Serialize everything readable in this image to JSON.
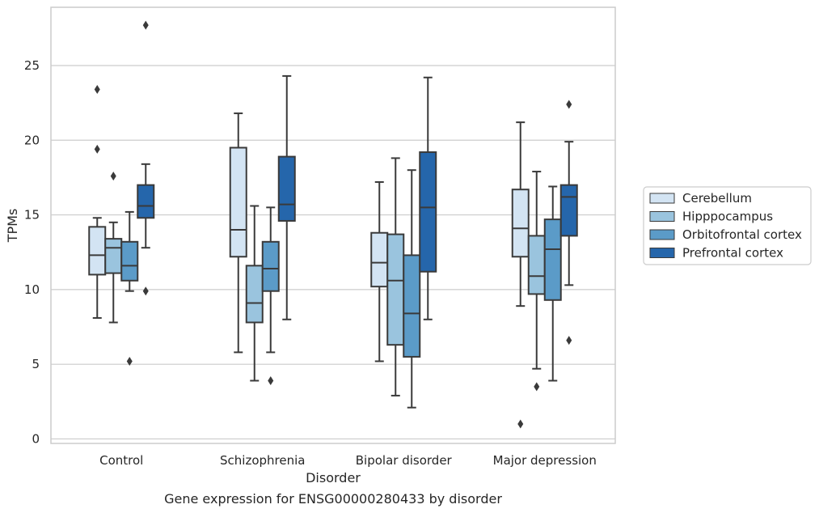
{
  "chart_data": {
    "type": "box",
    "title": "",
    "caption": "Gene expression for ENSG00000280433 by disorder",
    "xlabel": "Disorder",
    "ylabel": "TPMs",
    "ylim": [
      -0.3,
      28.9
    ],
    "yticks": [
      0,
      5,
      10,
      15,
      20,
      25
    ],
    "grid": "horizontal",
    "legend_position": "right",
    "categories": [
      "Control",
      "Schizophrenia",
      "Bipolar disorder",
      "Major depression"
    ],
    "series": [
      {
        "name": "Cerebellum",
        "color": "#d3e4f3",
        "boxes": [
          {
            "whislo": 8.1,
            "q1": 11.0,
            "med": 12.3,
            "q3": 14.2,
            "whishi": 14.8,
            "fliers": [
              23.4,
              19.4
            ]
          },
          {
            "whislo": 5.8,
            "q1": 12.2,
            "med": 14.0,
            "q3": 19.5,
            "whishi": 21.8,
            "fliers": []
          },
          {
            "whislo": 5.2,
            "q1": 10.2,
            "med": 11.8,
            "q3": 13.8,
            "whishi": 17.2,
            "fliers": []
          },
          {
            "whislo": 8.9,
            "q1": 12.2,
            "med": 14.1,
            "q3": 16.7,
            "whishi": 21.2,
            "fliers": [
              1.0
            ]
          }
        ]
      },
      {
        "name": "Hipppocampus",
        "color": "#9ac4de",
        "boxes": [
          {
            "whislo": 7.8,
            "q1": 11.1,
            "med": 12.8,
            "q3": 13.4,
            "whishi": 14.5,
            "fliers": [
              17.6
            ]
          },
          {
            "whislo": 3.9,
            "q1": 7.8,
            "med": 9.1,
            "q3": 11.6,
            "whishi": 15.6,
            "fliers": []
          },
          {
            "whislo": 2.9,
            "q1": 6.3,
            "med": 10.6,
            "q3": 13.7,
            "whishi": 18.8,
            "fliers": []
          },
          {
            "whislo": 4.7,
            "q1": 9.7,
            "med": 10.9,
            "q3": 13.6,
            "whishi": 17.9,
            "fliers": [
              3.5
            ]
          }
        ]
      },
      {
        "name": "Orbitofrontal cortex",
        "color": "#5b9bc8",
        "boxes": [
          {
            "whislo": 9.9,
            "q1": 10.6,
            "med": 11.6,
            "q3": 13.2,
            "whishi": 15.2,
            "fliers": [
              5.2
            ]
          },
          {
            "whislo": 5.8,
            "q1": 9.9,
            "med": 11.4,
            "q3": 13.2,
            "whishi": 15.5,
            "fliers": [
              3.9
            ]
          },
          {
            "whislo": 2.1,
            "q1": 5.5,
            "med": 8.4,
            "q3": 12.3,
            "whishi": 18.0,
            "fliers": []
          },
          {
            "whislo": 3.9,
            "q1": 9.3,
            "med": 12.7,
            "q3": 14.7,
            "whishi": 16.9,
            "fliers": []
          }
        ]
      },
      {
        "name": "Prefrontal cortex",
        "color": "#2566ab",
        "boxes": [
          {
            "whislo": 12.8,
            "q1": 14.8,
            "med": 15.6,
            "q3": 17.0,
            "whishi": 18.4,
            "fliers": [
              27.7,
              9.9
            ]
          },
          {
            "whislo": 8.0,
            "q1": 14.6,
            "med": 15.7,
            "q3": 18.9,
            "whishi": 24.3,
            "fliers": []
          },
          {
            "whislo": 8.0,
            "q1": 11.2,
            "med": 15.5,
            "q3": 19.2,
            "whishi": 24.2,
            "fliers": []
          },
          {
            "whislo": 10.3,
            "q1": 13.6,
            "med": 16.2,
            "q3": 17.0,
            "whishi": 19.9,
            "fliers": [
              22.4,
              6.6
            ]
          }
        ]
      }
    ]
  }
}
